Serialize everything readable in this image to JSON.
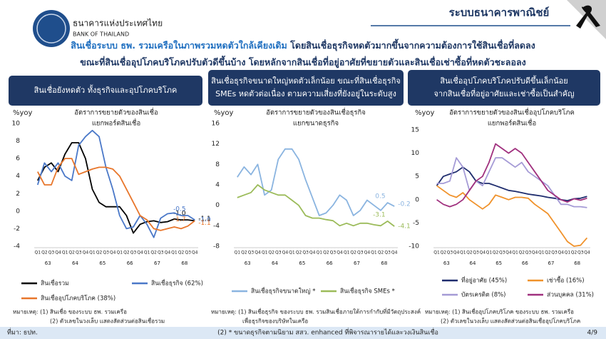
{
  "header": {
    "bank_name_th": "ธนาคารแห่งประเทศไทย",
    "bank_name_en": "BANK OF THAILAND",
    "title": "ระบบธนาคารพาณิชย์"
  },
  "headline": {
    "line1_lead": "สินเชื่อระบบ ธพ. รวมเครือในภาพรวมหดตัวใกล้เคียงเดิม",
    "line1_rest": " โดยสินเชื่อธุรกิจหดตัวมากขึ้นจากความต้องการใช้สินเชื่อที่ลดลง",
    "line2": "ขณะที่สินเชื่ออุปโภคบริโภคปรับตัวดีขึ้นบ้าง โดยหลักจากสินเชื่อที่อยู่อาศัยที่ขยายตัวและสินเชื่อเช่าซื้อที่หดตัวชะลอลง"
  },
  "panels": [
    {
      "lines": [
        "สินเชื่อยังหดตัว ทั้งธุรกิจและอุปโภคบริโภค"
      ]
    },
    {
      "lines": [
        "สินเชื่อธุรกิจขนาดใหญ่หดตัวเล็กน้อย ขณะที่สินเชื่อธุรกิจ",
        "SMEs หดตัวต่อเนื่อง ตามความเสี่ยงที่ยังอยู่ในระดับสูง"
      ]
    },
    {
      "lines": [
        "สินเชื่ออุปโภคบริโภคปรับดีขึ้นเล็กน้อย",
        "จากสินเชื่อที่อยู่อาศัยและเช่าซื้อเป็นสำคัญ"
      ]
    }
  ],
  "chart_data": [
    {
      "type": "line",
      "title": "อัตราการขยายตัวของสินเชื่อ",
      "subtitle": "แยกพอร์ตสินเชื่อ",
      "y_label": "%yoy",
      "categories": [
        "Q1",
        "Q2",
        "Q3",
        "Q4",
        "Q1",
        "Q2",
        "Q3",
        "Q4",
        "Q1",
        "Q2",
        "Q3",
        "Q4",
        "Q1",
        "Q2",
        "Q3",
        "Q4",
        "Q1",
        "Q2",
        "Q3",
        "Q4",
        "Q1",
        "Q2",
        "Q3",
        "Q4"
      ],
      "years": [
        "63",
        "64",
        "65",
        "66",
        "67",
        "68"
      ],
      "ylim": [
        -4,
        10
      ],
      "yticks": [
        -4,
        -2,
        0,
        2,
        4,
        6,
        8,
        10
      ],
      "series": [
        {
          "name": "สินเชื่อรวม",
          "color": "#000000",
          "values": [
            3.5,
            5,
            5.5,
            4.5,
            6.5,
            7.8,
            7.8,
            6,
            2.5,
            1,
            0.5,
            0.5,
            0.5,
            -0.5,
            -2.5,
            -1.5,
            -1.2,
            -1.1,
            -1.3,
            -1.2,
            -0.9,
            -1.0,
            -1.0,
            -1.1
          ],
          "value_labels": [
            null,
            null,
            null,
            null,
            null,
            null,
            null,
            null,
            null,
            null,
            null,
            null,
            null,
            null,
            null,
            null,
            null,
            null,
            null,
            null,
            null,
            null,
            "-1.0",
            "-1.1"
          ]
        },
        {
          "name": "สินเชื่อธุรกิจ (62%)",
          "color": "#4a78c8",
          "values": [
            3,
            5.5,
            4.5,
            5.5,
            4,
            3.5,
            7.5,
            8.5,
            9.2,
            8.5,
            5,
            2.5,
            -0.5,
            -2,
            -1.8,
            -0.5,
            -1.5,
            -3,
            -0.8,
            -0.3,
            -0.2,
            -0.5,
            -0.5,
            -1.0
          ],
          "value_labels": [
            null,
            null,
            null,
            null,
            null,
            null,
            null,
            null,
            null,
            null,
            null,
            null,
            null,
            null,
            null,
            null,
            null,
            null,
            null,
            null,
            null,
            null,
            "-0.5",
            "-1.0"
          ]
        },
        {
          "name": "สินเชื่ออุปโภคบริโภค (38%)",
          "color": "#e8762b",
          "values": [
            4.5,
            3,
            3,
            5,
            6,
            6,
            4.2,
            4.5,
            4.8,
            5,
            5,
            4.8,
            4,
            2.5,
            1,
            -0.5,
            -1,
            -2,
            -2.2,
            -2,
            -1.8,
            -2,
            -1.7,
            -1.1
          ],
          "value_labels": [
            null,
            null,
            null,
            null,
            null,
            null,
            null,
            null,
            null,
            null,
            null,
            null,
            null,
            null,
            null,
            null,
            null,
            null,
            null,
            null,
            null,
            null,
            "-1.7",
            "-1.1"
          ]
        }
      ],
      "notes": [
        "หมายเหตุ: (1) สินเชื่อ ของระบบ ธพ. รวมเครือ",
        "(2) ตัวเลขในวงเล็บ แสดงสัดส่วนต่อสินเชื่อรวม"
      ]
    },
    {
      "type": "line",
      "title": "อัตราการขยายตัวของสินเชื่อธุรกิจ",
      "subtitle": "แยกขนาดธุรกิจ",
      "y_label": "%yoy",
      "categories": [
        "Q1",
        "Q2",
        "Q3",
        "Q4",
        "Q1",
        "Q2",
        "Q3",
        "Q4",
        "Q1",
        "Q2",
        "Q3",
        "Q4",
        "Q1",
        "Q2",
        "Q3",
        "Q4",
        "Q1",
        "Q2",
        "Q3",
        "Q4",
        "Q1",
        "Q2",
        "Q3",
        "Q4"
      ],
      "years": [
        "63",
        "64",
        "65",
        "66",
        "67",
        "68"
      ],
      "ylim": [
        -8,
        16
      ],
      "yticks": [
        -8,
        -4,
        0,
        4,
        8,
        12,
        16
      ],
      "series": [
        {
          "name": "สินเชื่อธุรกิจขนาดใหญ่ *",
          "color": "#8ab4e0",
          "values": [
            5.5,
            7.5,
            6,
            8,
            2,
            3,
            9,
            11,
            11,
            9,
            5,
            1.5,
            -2,
            -1.5,
            0,
            2,
            1,
            -2,
            -1,
            1,
            0,
            -1,
            0.5,
            -0.2
          ],
          "value_labels": [
            null,
            null,
            null,
            null,
            null,
            null,
            null,
            null,
            null,
            null,
            null,
            null,
            null,
            null,
            null,
            null,
            null,
            null,
            null,
            null,
            null,
            null,
            "0.5",
            "-0.2"
          ]
        },
        {
          "name": "สินเชื่อธุรกิจ SMEs *",
          "color": "#9bbb59",
          "values": [
            1.5,
            2,
            2.5,
            4,
            3,
            2.5,
            2,
            2,
            1,
            0,
            -2,
            -2.5,
            -2.5,
            -2.8,
            -3,
            -4,
            -3.5,
            -4,
            -3.5,
            -3.5,
            -3.8,
            -4,
            -3.1,
            -4.1
          ],
          "value_labels": [
            null,
            null,
            null,
            null,
            null,
            null,
            null,
            null,
            null,
            null,
            null,
            null,
            null,
            null,
            null,
            null,
            null,
            null,
            null,
            null,
            null,
            null,
            "-3.1",
            "-4.1"
          ]
        }
      ],
      "notes": [
        "หมายเหตุ: (1) สินเชื่อธุรกิจ ของระบบ ธพ. รวมสินเชื่อภายใต้การกำกับที่มีวัตถุประสงค์",
        "เพื่อธุรกิจของบริษัทในเครือ"
      ]
    },
    {
      "type": "line",
      "title": "อัตราการขยายตัวของสินเชื่ออุปโภคบริโภค",
      "subtitle": "แยกพอร์ตสินเชื่อ",
      "y_label": "%yoy",
      "categories": [
        "Q1",
        "Q2",
        "Q3",
        "Q4",
        "Q1",
        "Q2",
        "Q3",
        "Q4",
        "Q1",
        "Q2",
        "Q3",
        "Q4",
        "Q1",
        "Q2",
        "Q3",
        "Q4",
        "Q1",
        "Q2",
        "Q3",
        "Q4",
        "Q1",
        "Q2",
        "Q3",
        "Q4"
      ],
      "years": [
        "63",
        "64",
        "65",
        "66",
        "67",
        "68"
      ],
      "ylim": [
        -10,
        15
      ],
      "yticks": [
        -10,
        -5,
        0,
        5,
        10,
        15
      ],
      "series": [
        {
          "name": "ที่อยู่อาศัย (45%)",
          "color": "#1f2d6e",
          "values": [
            3,
            5,
            5.5,
            6,
            7,
            6,
            4,
            3.5,
            3.5,
            3,
            2.5,
            2,
            1.8,
            1.5,
            1.2,
            1,
            0.8,
            0.5,
            0.3,
            0,
            -0.2,
            0.2,
            0.3,
            0.7
          ]
        },
        {
          "name": "เช่าซื้อ (16%)",
          "color": "#f0922b",
          "values": [
            3,
            2,
            1,
            0.5,
            1.5,
            0,
            -1,
            -2,
            -1,
            1,
            0.5,
            0,
            0.5,
            0.5,
            0.3,
            -1,
            -2,
            -3,
            -5,
            -7,
            -9,
            -10,
            -9.8,
            -8.2
          ]
        },
        {
          "name": "บัตรเครดิต (8%)",
          "color": "#a59bd6",
          "values": [
            3.5,
            3.5,
            4,
            9,
            7,
            2,
            4,
            3,
            6,
            9,
            9,
            8,
            7,
            8,
            6,
            5,
            4,
            3,
            1,
            -1,
            -1,
            -1.5,
            -1.5,
            -1.7
          ]
        },
        {
          "name": "ส่วนบุคคล (31%)",
          "color": "#a0307e",
          "values": [
            0,
            -1,
            -1.5,
            -1,
            0,
            2,
            4,
            5,
            8,
            12,
            11,
            10,
            11,
            10,
            8,
            6,
            4,
            2,
            1,
            0,
            -0.5,
            0.2,
            -0.1,
            0.3
          ]
        }
      ],
      "notes": [
        "หมายเหตุ: (1) สินเชื่ออุปโภคบริโภค ของระบบ ธพ. รวมเครือ",
        "(2) ตัวเลขในวงเล็บ แสดงสัดส่วนต่อสินเชื่ออุปโภคบริโภค"
      ]
    }
  ],
  "footer": {
    "source": "ที่มา: ธปท.",
    "footnote": "(2) * ขนาดธุรกิจตามนิยาม สสว. enhanced ที่พิจารณารายได้และวงเงินสินเชื่อ",
    "page": "4/9"
  }
}
